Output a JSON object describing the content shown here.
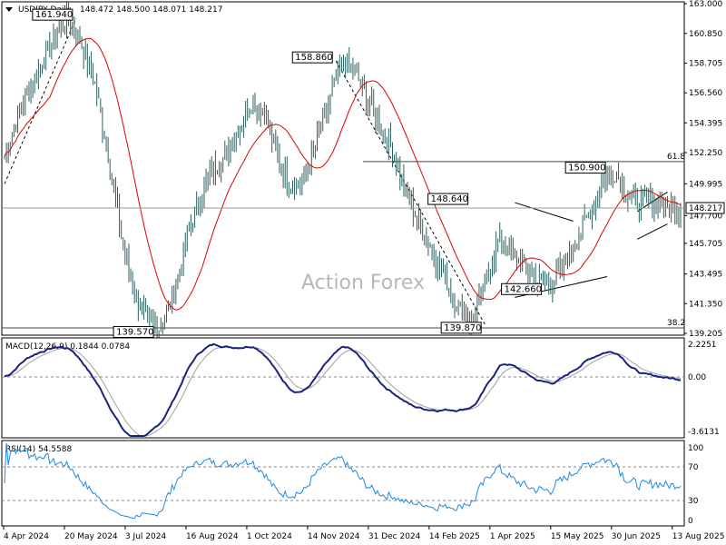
{
  "chart_data": [
    {
      "type": "candlestick",
      "title": "USDJPY,Daily",
      "ohlc_readout": "148.472 148.500 148.071 148.217",
      "last_price": "148.217",
      "watermark": "Action Forex",
      "y_ticks": [
        "163.000",
        "160.850",
        "158.705",
        "156.560",
        "154.395",
        "152.250",
        "149.995",
        "147.700",
        "145.705",
        "143.495",
        "141.350",
        "139.205"
      ],
      "ylim": [
        139.205,
        163.0
      ],
      "fib_labels": [
        "61.8",
        "38.2"
      ],
      "fib_levels": [
        151.6,
        139.6
      ],
      "annotations": [
        {
          "text": "161.940",
          "value": 161.94
        },
        {
          "text": "139.570",
          "value": 139.57
        },
        {
          "text": "158.860",
          "value": 158.86
        },
        {
          "text": "139.870",
          "value": 139.87
        },
        {
          "text": "148.640",
          "value": 148.64
        },
        {
          "text": "142.660",
          "value": 142.66
        },
        {
          "text": "150.900",
          "value": 150.9
        }
      ],
      "close_approx": [
        152,
        155,
        157,
        159,
        161,
        161.9,
        160,
        157,
        152,
        146,
        142,
        140,
        139.6,
        142,
        146,
        149,
        151,
        152,
        154,
        156,
        155,
        152,
        150,
        150,
        153,
        156,
        158.8,
        158,
        156,
        154,
        152,
        149,
        147,
        145,
        143,
        141,
        140,
        143,
        146,
        145,
        144,
        143,
        142.7,
        144,
        146,
        148,
        150,
        150.9,
        149,
        148.5,
        148.8,
        148.3,
        148.2
      ]
    },
    {
      "type": "line",
      "title": "MACD(12,26,9) 0.1844 0.0784",
      "y_ticks": [
        "2.2251",
        "0.00",
        "-3.6131"
      ],
      "ylim": [
        -3.6131,
        2.2251
      ]
    },
    {
      "type": "line",
      "title": "RSI(14) 54.5588",
      "y_ticks": [
        "100",
        "70",
        "30",
        "0"
      ],
      "ylim": [
        0,
        100
      ]
    }
  ],
  "x_tick_labels": [
    "4 Apr 2024",
    "20 May 2024",
    "3 Jul 2024",
    "16 Aug 2024",
    "1 Oct 2024",
    "14 Nov 2024",
    "31 Dec 2024",
    "14 Feb 2025",
    "1 Apr 2025",
    "15 May 2025",
    "30 Jun 2025",
    "13 Aug 2025"
  ],
  "colors": {
    "candle": "#2f5f5f",
    "ma": "#e00000",
    "macd": "#1a237e",
    "signal": "#a0a0a0",
    "rsi": "#1e88e5"
  }
}
